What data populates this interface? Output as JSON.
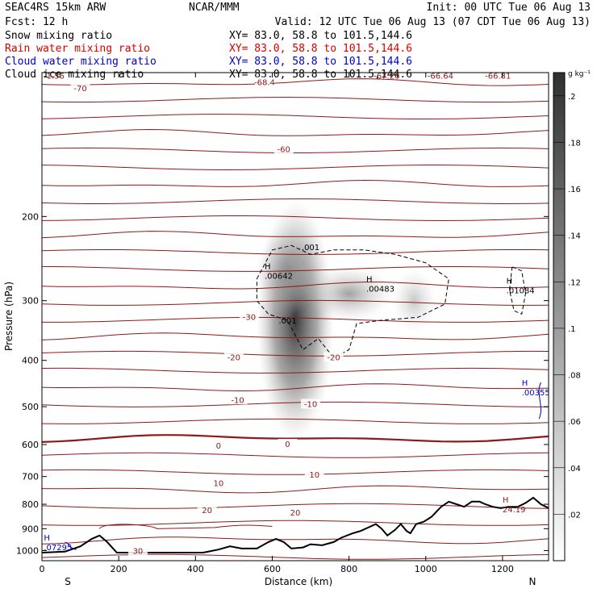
{
  "header": {
    "model": "SEAC4RS 15km ARW",
    "center": "NCAR/MMM",
    "init": "Init: 00 UTC Tue 06 Aug 13",
    "fcst": "Fcst:   12 h",
    "valid": "Valid: 12 UTC Tue 06 Aug 13 (07 CDT Tue 06 Aug 13)"
  },
  "fields": [
    {
      "label": "Snow mixing ratio",
      "xy": "XY=  83.0, 58.8 to 101.5,144.6",
      "color": "#000000"
    },
    {
      "label": "Rain water mixing ratio",
      "xy": "XY=  83.0, 58.8 to 101.5,144.6",
      "color": "#d40000"
    },
    {
      "label": "Cloud water mixing ratio",
      "xy": "XY=  83.0, 58.8 to 101.5,144.6",
      "color": "#0000c8"
    },
    {
      "label": "Cloud ice mixing ratio",
      "xy": "XY=  83.0, 58.8 to 101.5,144.6",
      "color": "#000000"
    }
  ],
  "chart_data": {
    "type": "cross-section contour",
    "xlabel": "Distance (km)",
    "ylabel": "Pressure (hPa)",
    "xlim": [
      0,
      1320
    ],
    "ylim": [
      1050,
      100
    ],
    "y_scale": "log-pressure",
    "x_ticks": [
      0,
      200,
      400,
      600,
      800,
      1000,
      1200
    ],
    "y_ticks": [
      200,
      300,
      400,
      500,
      600,
      700,
      800,
      900,
      1000
    ],
    "x_end_labels": {
      "left": "S",
      "right": "N"
    },
    "temperature_contours_C": [
      {
        "label": "-70",
        "x": 100,
        "p": 108
      },
      {
        "label": "-68.4",
        "x": 580,
        "p": 105
      },
      {
        "label": "-60",
        "x": 630,
        "p": 145
      },
      {
        "label": "-30",
        "x": 540,
        "p": 325
      },
      {
        "label": "-20",
        "x": 500,
        "p": 395
      },
      {
        "label": "-20",
        "x": 760,
        "p": 395
      },
      {
        "label": "-10",
        "x": 510,
        "p": 485
      },
      {
        "label": "-10",
        "x": 700,
        "p": 495
      },
      {
        "label": "0",
        "x": 460,
        "p": 605
      },
      {
        "label": "0",
        "x": 640,
        "p": 600
      },
      {
        "label": "10",
        "x": 460,
        "p": 725
      },
      {
        "label": "10",
        "x": 710,
        "p": 695
      },
      {
        "label": "20",
        "x": 430,
        "p": 825
      },
      {
        "label": "20",
        "x": 660,
        "p": 835
      },
      {
        "label": "30",
        "x": 250,
        "p": 1005
      }
    ],
    "extrema_labels": [
      {
        "kind": "H",
        "value": ".00642",
        "x": 580,
        "p": 268,
        "color": "#000000"
      },
      {
        "kind": "H",
        "value": ".00483",
        "x": 845,
        "p": 285,
        "color": "#000000"
      },
      {
        "kind": "H",
        "value": ".01084",
        "x": 1210,
        "p": 287,
        "color": "#000000"
      },
      {
        "kind": "H",
        "value": ".00355",
        "x": 1250,
        "p": 470,
        "color": "#0000c8"
      },
      {
        "kind": "H",
        "value": ".07295",
        "x": 5,
        "p": 990,
        "color": "#0000c8"
      },
      {
        "kind": "H",
        "value": "24.19",
        "x": 1200,
        "p": 825,
        "color": "#8b1a1a"
      }
    ],
    "top_row_values": [
      "-1.56",
      "-67.26",
      "-66.64",
      "-66.81"
    ],
    "dashed_contour_labels": [
      ".001",
      ".001"
    ],
    "colorbar": {
      "unit": "g kg⁻¹",
      "ticks": [
        ".02",
        ".04",
        ".06",
        ".08",
        ".1",
        ".12",
        ".14",
        ".16",
        ".18",
        ".2"
      ]
    },
    "terrain_km_hpa": [
      [
        0,
        1010
      ],
      [
        60,
        1005
      ],
      [
        100,
        980
      ],
      [
        130,
        945
      ],
      [
        150,
        930
      ],
      [
        170,
        960
      ],
      [
        195,
        1010
      ],
      [
        300,
        1010
      ],
      [
        420,
        1010
      ],
      [
        460,
        995
      ],
      [
        490,
        980
      ],
      [
        520,
        990
      ],
      [
        560,
        990
      ],
      [
        590,
        960
      ],
      [
        610,
        945
      ],
      [
        630,
        960
      ],
      [
        650,
        990
      ],
      [
        680,
        985
      ],
      [
        700,
        970
      ],
      [
        730,
        975
      ],
      [
        760,
        960
      ],
      [
        780,
        940
      ],
      [
        810,
        920
      ],
      [
        830,
        910
      ],
      [
        850,
        895
      ],
      [
        870,
        880
      ],
      [
        885,
        900
      ],
      [
        900,
        930
      ],
      [
        920,
        905
      ],
      [
        935,
        880
      ],
      [
        950,
        910
      ],
      [
        960,
        920
      ],
      [
        975,
        880
      ],
      [
        995,
        870
      ],
      [
        1015,
        850
      ],
      [
        1040,
        810
      ],
      [
        1060,
        790
      ],
      [
        1080,
        800
      ],
      [
        1100,
        810
      ],
      [
        1120,
        790
      ],
      [
        1140,
        790
      ],
      [
        1155,
        800
      ],
      [
        1175,
        810
      ],
      [
        1195,
        815
      ],
      [
        1215,
        810
      ],
      [
        1240,
        810
      ],
      [
        1260,
        795
      ],
      [
        1280,
        775
      ],
      [
        1300,
        800
      ],
      [
        1320,
        815
      ]
    ]
  }
}
